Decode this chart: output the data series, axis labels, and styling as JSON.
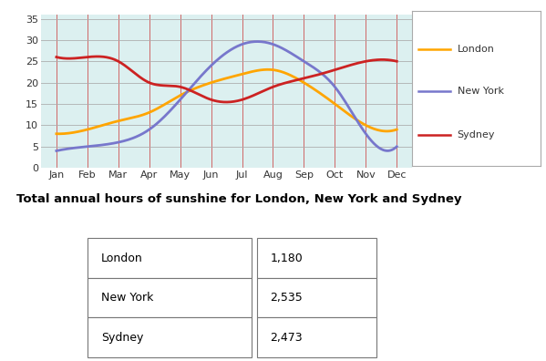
{
  "months": [
    "Jan",
    "Feb",
    "Mar",
    "Apr",
    "May",
    "Jun",
    "Jul",
    "Aug",
    "Sep",
    "Oct",
    "Nov",
    "Dec"
  ],
  "london": [
    8,
    9,
    11,
    13,
    17,
    20,
    22,
    23,
    20,
    15,
    10,
    9
  ],
  "new_york": [
    4,
    5,
    6,
    9,
    16,
    24,
    29,
    29,
    25,
    19,
    8,
    5
  ],
  "sydney": [
    26,
    26,
    25,
    20,
    19,
    16,
    16,
    19,
    21,
    23,
    25,
    25
  ],
  "london_color": "#FFA500",
  "new_york_color": "#7777CC",
  "sydney_color": "#CC2222",
  "teal_color": "#55BBBB",
  "plot_bg_color": "#DCF0F0",
  "grid_color_v": "#CC4444",
  "grid_color_h": "#AAAAAA",
  "yticks": [
    0,
    5,
    10,
    15,
    20,
    25,
    30,
    35
  ],
  "ylim": [
    0,
    36
  ],
  "table_title": "Total annual hours of sunshine for London, New York and Sydney",
  "table_data": [
    [
      "London",
      "1,180"
    ],
    [
      "New York",
      "2,535"
    ],
    [
      "Sydney",
      "2,473"
    ]
  ],
  "line_width": 2.0
}
